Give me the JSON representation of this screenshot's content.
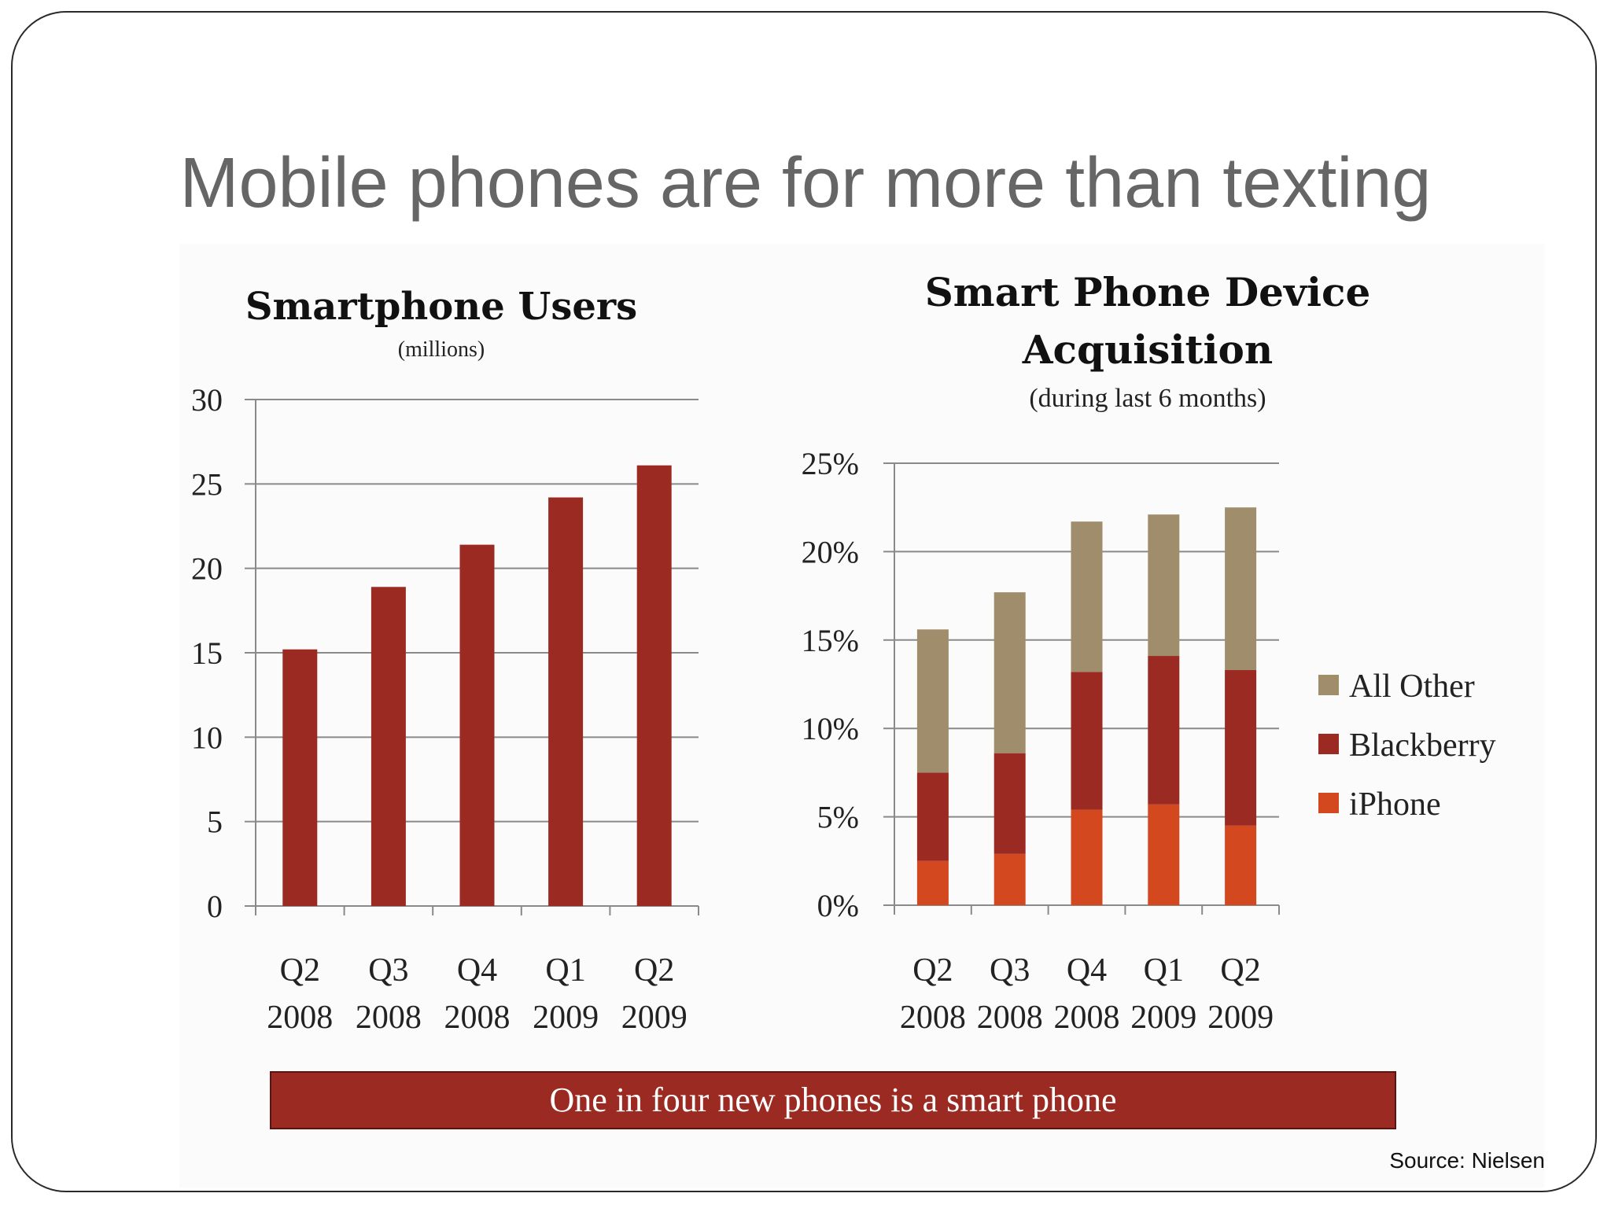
{
  "title": "Mobile phones are for more than texting",
  "banner": "One in four new phones is a smart phone",
  "source": "Source: Nielsen",
  "colors": {
    "bar": "#9b2b22",
    "iphone": "#d4481f",
    "blackberry": "#9b2b22",
    "all_other": "#a08d6b",
    "banner": "#9b2b22"
  },
  "chart_data": [
    {
      "type": "bar",
      "title": "Smartphone Users",
      "subtitle": "(millions)",
      "categories": [
        [
          "Q2",
          "2008"
        ],
        [
          "Q3",
          "2008"
        ],
        [
          "Q4",
          "2008"
        ],
        [
          "Q1",
          "2009"
        ],
        [
          "Q2",
          "2009"
        ]
      ],
      "values": [
        15.2,
        18.9,
        21.4,
        24.2,
        26.1
      ],
      "ylim": [
        0,
        30
      ],
      "yticks": [
        "0",
        "5",
        "10",
        "15",
        "20",
        "25",
        "30"
      ],
      "grid": true
    },
    {
      "type": "bar",
      "stacked": true,
      "title": [
        "Smart Phone Device",
        "Acquisition"
      ],
      "subtitle": "(during last 6 months)",
      "categories": [
        [
          "Q2",
          "2008"
        ],
        [
          "Q3",
          "2008"
        ],
        [
          "Q4",
          "2008"
        ],
        [
          "Q1",
          "2009"
        ],
        [
          "Q2",
          "2009"
        ]
      ],
      "series": [
        {
          "name": "iPhone",
          "values": [
            2.5,
            2.9,
            5.4,
            5.7,
            4.5
          ]
        },
        {
          "name": "Blackberry",
          "values": [
            5.0,
            5.7,
            7.8,
            8.4,
            8.8
          ]
        },
        {
          "name": "All Other",
          "values": [
            8.1,
            9.1,
            8.5,
            8.0,
            9.2
          ]
        }
      ],
      "legend_order": [
        "All Other",
        "Blackberry",
        "iPhone"
      ],
      "legend_position": "right",
      "ylim": [
        0,
        25
      ],
      "yticks": [
        "0%",
        "5%",
        "10%",
        "15%",
        "20%",
        "25%"
      ],
      "grid": true
    }
  ]
}
